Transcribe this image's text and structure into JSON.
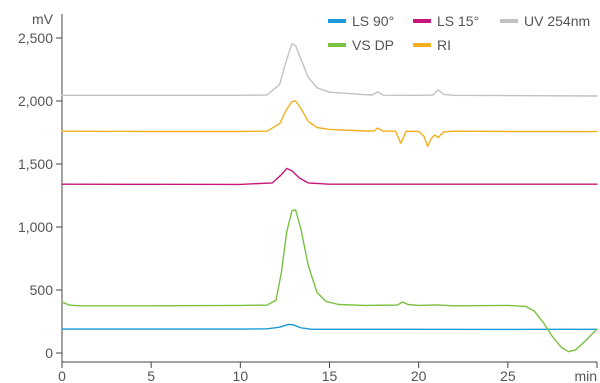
{
  "chart_data": {
    "type": "line",
    "ylabel": "mV",
    "xlabel": "min",
    "xlim": [
      0,
      30
    ],
    "ylim": [
      -100,
      2650
    ],
    "x_ticks": [
      0,
      5,
      10,
      15,
      20,
      25
    ],
    "x_tick_labels": [
      "0",
      "5",
      "10",
      "15",
      "20",
      "25"
    ],
    "y_ticks": [
      0,
      500,
      1000,
      1500,
      2000,
      2500
    ],
    "y_tick_labels": [
      "0",
      "500",
      "1,000",
      "1,500",
      "2,000",
      "2,500"
    ],
    "grid": false,
    "legend_position": "top-right",
    "series": [
      {
        "name": "LS 90°",
        "color": "#1a9ad6",
        "points": [
          [
            0,
            190
          ],
          [
            5,
            190
          ],
          [
            10,
            190
          ],
          [
            11.5,
            192
          ],
          [
            12.2,
            205
          ],
          [
            12.7,
            228
          ],
          [
            13.0,
            222
          ],
          [
            13.4,
            200
          ],
          [
            14,
            188
          ],
          [
            20,
            188
          ],
          [
            25,
            187
          ],
          [
            27,
            188
          ],
          [
            30,
            188
          ]
        ]
      },
      {
        "name": "LS 15°",
        "color": "#c8177a",
        "points": [
          [
            0,
            1340
          ],
          [
            5,
            1339
          ],
          [
            10,
            1338
          ],
          [
            11.8,
            1350
          ],
          [
            12.3,
            1415
          ],
          [
            12.6,
            1465
          ],
          [
            12.9,
            1445
          ],
          [
            13.3,
            1390
          ],
          [
            13.8,
            1350
          ],
          [
            15,
            1340
          ],
          [
            20,
            1340
          ],
          [
            25,
            1340
          ],
          [
            30,
            1340
          ]
        ]
      },
      {
        "name": "UV 254nm",
        "color": "#c2c2c2",
        "points": [
          [
            0,
            2045
          ],
          [
            5,
            2045
          ],
          [
            10,
            2045
          ],
          [
            11.5,
            2048
          ],
          [
            12.2,
            2130
          ],
          [
            12.6,
            2330
          ],
          [
            12.9,
            2455
          ],
          [
            13.1,
            2440
          ],
          [
            13.4,
            2330
          ],
          [
            13.8,
            2190
          ],
          [
            14.3,
            2105
          ],
          [
            15,
            2070
          ],
          [
            17,
            2050
          ],
          [
            17.4,
            2048
          ],
          [
            17.7,
            2072
          ],
          [
            18,
            2046
          ],
          [
            20,
            2045
          ],
          [
            20.8,
            2048
          ],
          [
            21.1,
            2088
          ],
          [
            21.4,
            2052
          ],
          [
            22,
            2045
          ],
          [
            25,
            2043
          ],
          [
            30,
            2040
          ]
        ]
      },
      {
        "name": "VS DP",
        "color": "#7ac142",
        "points": [
          [
            0,
            405
          ],
          [
            0.4,
            380
          ],
          [
            1,
            375
          ],
          [
            5,
            375
          ],
          [
            10,
            378
          ],
          [
            11.5,
            380
          ],
          [
            12,
            420
          ],
          [
            12.3,
            640
          ],
          [
            12.6,
            960
          ],
          [
            12.9,
            1130
          ],
          [
            13.1,
            1135
          ],
          [
            13.4,
            980
          ],
          [
            13.8,
            700
          ],
          [
            14.3,
            480
          ],
          [
            14.8,
            410
          ],
          [
            15.5,
            385
          ],
          [
            17,
            378
          ],
          [
            18.8,
            380
          ],
          [
            19.1,
            405
          ],
          [
            19.4,
            385
          ],
          [
            20,
            378
          ],
          [
            21,
            382
          ],
          [
            22,
            375
          ],
          [
            25,
            378
          ],
          [
            26,
            370
          ],
          [
            26.5,
            330
          ],
          [
            27,
            240
          ],
          [
            27.5,
            130
          ],
          [
            28,
            45
          ],
          [
            28.4,
            10
          ],
          [
            28.8,
            25
          ],
          [
            29.3,
            90
          ],
          [
            29.8,
            160
          ],
          [
            30,
            190
          ]
        ]
      },
      {
        "name": "RI",
        "color": "#f2b01e",
        "points": [
          [
            0,
            1760
          ],
          [
            5,
            1758
          ],
          [
            10,
            1758
          ],
          [
            11.5,
            1760
          ],
          [
            12.2,
            1820
          ],
          [
            12.6,
            1935
          ],
          [
            12.9,
            1995
          ],
          [
            13.1,
            2000
          ],
          [
            13.4,
            1940
          ],
          [
            13.8,
            1840
          ],
          [
            14.3,
            1790
          ],
          [
            15,
            1775
          ],
          [
            17,
            1762
          ],
          [
            17.5,
            1762
          ],
          [
            17.7,
            1785
          ],
          [
            18,
            1762
          ],
          [
            18.7,
            1760
          ],
          [
            19,
            1665
          ],
          [
            19.3,
            1760
          ],
          [
            20,
            1758
          ],
          [
            20.3,
            1720
          ],
          [
            20.5,
            1640
          ],
          [
            20.7,
            1700
          ],
          [
            20.9,
            1730
          ],
          [
            21.1,
            1710
          ],
          [
            21.4,
            1755
          ],
          [
            22,
            1760
          ],
          [
            25,
            1758
          ],
          [
            30,
            1757
          ]
        ]
      }
    ]
  }
}
